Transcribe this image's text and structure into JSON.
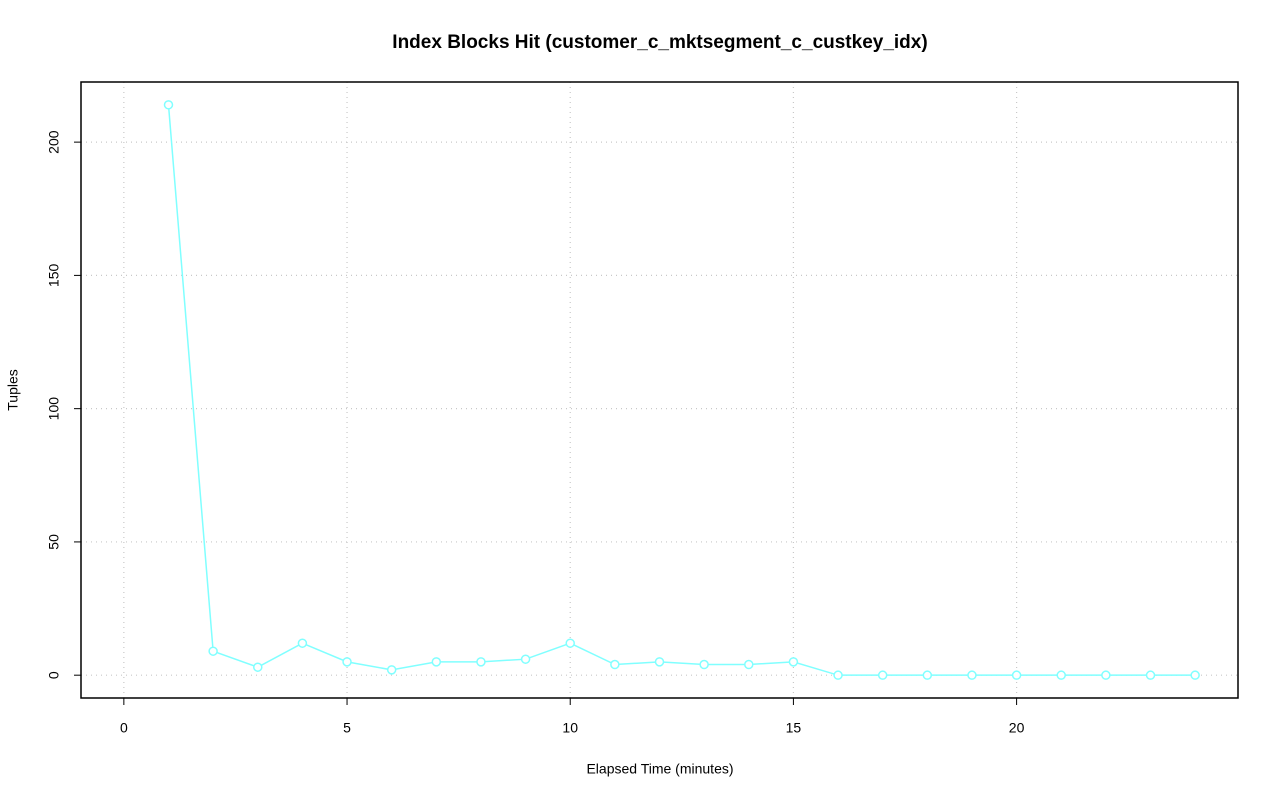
{
  "chart_data": {
    "type": "line",
    "title": "Index Blocks Hit (customer_c_mktsegment_c_custkey_idx)",
    "x_label": "Elapsed Time (minutes)",
    "y_label": "Tuples",
    "x": [
      1,
      2,
      3,
      4,
      5,
      6,
      7,
      8,
      9,
      10,
      11,
      12,
      13,
      14,
      15,
      16,
      17,
      18,
      19,
      20,
      21,
      22,
      23,
      24
    ],
    "series": [
      {
        "name": "customer_c_mktsegment_c_custkey_idx",
        "color": "#80ffff",
        "values": [
          214,
          9,
          3,
          12,
          5,
          2,
          5,
          5,
          6,
          12,
          4,
          5,
          4,
          4,
          5,
          0,
          0,
          0,
          0,
          0,
          0,
          0,
          0,
          0
        ]
      }
    ],
    "xlim": [
      -0.96,
      24.96
    ],
    "xticks": [
      0,
      5,
      10,
      15,
      20
    ],
    "ylim": [
      -8.56,
      222.56
    ],
    "yticks": [
      0,
      50,
      100,
      150,
      200
    ],
    "grid": true
  }
}
